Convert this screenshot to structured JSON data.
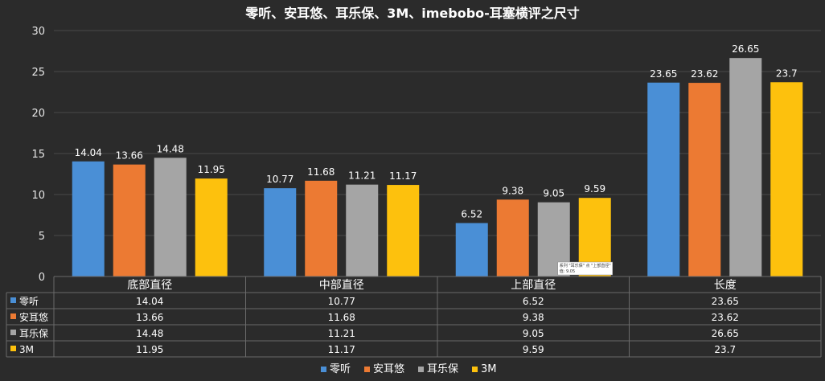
{
  "chart_data": {
    "type": "bar",
    "title": "零听、安耳悠、耳乐保、3M、imebobo-耳塞横评之尺寸",
    "categories": [
      "底部直径",
      "中部直径",
      "上部直径",
      "长度"
    ],
    "series": [
      {
        "name": "零听",
        "color": "#4a8fd6",
        "values": [
          14.04,
          10.77,
          6.52,
          23.65
        ],
        "labels": [
          "14.04",
          "10.77",
          "6.52",
          "23.65"
        ]
      },
      {
        "name": "安耳悠",
        "color": "#ec7a33",
        "values": [
          13.66,
          11.68,
          9.38,
          23.62
        ],
        "labels": [
          "13.66",
          "11.68",
          "9.38",
          "23.62"
        ]
      },
      {
        "name": "耳乐保",
        "color": "#a5a5a5",
        "values": [
          14.48,
          11.21,
          9.05,
          26.65
        ],
        "labels": [
          "14.48",
          "11.21",
          "9.05",
          "26.65"
        ]
      },
      {
        "name": "3M",
        "color": "#fdc10d",
        "values": [
          11.95,
          11.17,
          9.59,
          23.7
        ],
        "labels": [
          "11.95",
          "11.17",
          "9.59",
          "23.7"
        ]
      }
    ],
    "ylim": [
      0,
      30
    ],
    "yticks": [
      "0",
      "5",
      "10",
      "15",
      "20",
      "25",
      "30"
    ],
    "grid": true,
    "legend_position": "bottom",
    "data_table": true,
    "tooltip": {
      "line1": "系列 \"耳乐保\" 点 \"上部直径\"",
      "line2": "值: 9.05"
    }
  }
}
